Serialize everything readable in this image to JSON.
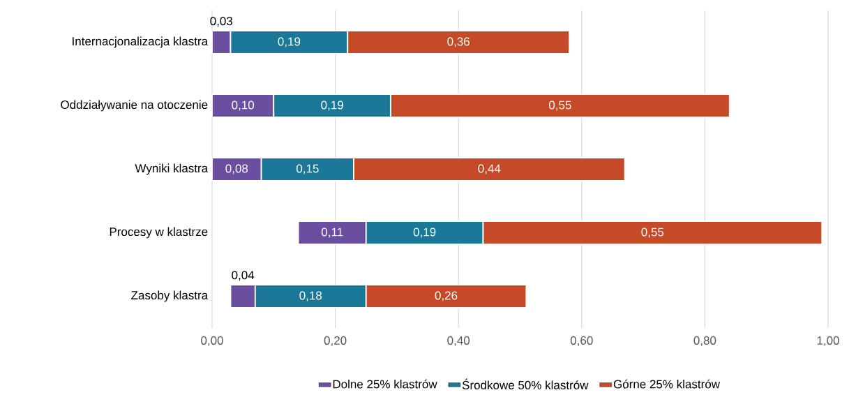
{
  "chart_data": {
    "type": "bar",
    "orientation": "horizontal",
    "stacked": true,
    "categories": [
      "Internacjonalizacja klastra",
      "Oddziaływanie na otoczenie",
      "Wyniki klastra",
      "Procesy w klastrze",
      "Zasoby klastra"
    ],
    "series": [
      {
        "name": "Dolne 25% klastrów",
        "color": "#6a4ea0",
        "base": [
          0,
          0,
          0,
          0.14,
          0.03
        ],
        "values": [
          0.03,
          0.1,
          0.08,
          0.11,
          0.04
        ],
        "value_labels": [
          "0,03",
          "0,10",
          "0,08",
          "0,11",
          "0,04"
        ]
      },
      {
        "name": "Środkowe 50% klastrów",
        "color": "#1b7896",
        "values": [
          0.19,
          0.19,
          0.15,
          0.19,
          0.18
        ],
        "value_labels": [
          "0,19",
          "0,19",
          "0,15",
          "0,19",
          "0,18"
        ]
      },
      {
        "name": "Górne 25% klastrów",
        "color": "#c64a27",
        "values": [
          0.36,
          0.55,
          0.44,
          0.55,
          0.26
        ],
        "value_labels": [
          "0,36",
          "0,55",
          "0,44",
          "0,55",
          "0,26"
        ]
      }
    ],
    "xlim": [
      0,
      1
    ],
    "xticks": [
      {
        "value": 0,
        "label": "0,00"
      },
      {
        "value": 0.2,
        "label": "0,20"
      },
      {
        "value": 0.4,
        "label": "0,40"
      },
      {
        "value": 0.6,
        "label": "0,60"
      },
      {
        "value": 0.8,
        "label": "0,80"
      },
      {
        "value": 1,
        "label": "1,00"
      }
    ],
    "grid": "x",
    "legend": "bottom"
  }
}
